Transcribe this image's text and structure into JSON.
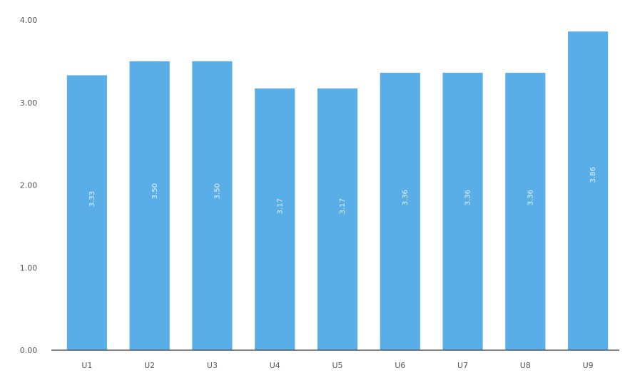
{
  "chart_data": {
    "type": "bar",
    "categories": [
      "U1",
      "U2",
      "U3",
      "U4",
      "U5",
      "U6",
      "U7",
      "U8",
      "U9"
    ],
    "values": [
      3.33,
      3.5,
      3.5,
      3.17,
      3.17,
      3.36,
      3.36,
      3.36,
      3.86
    ],
    "bar_labels": [
      "3.33",
      "3.50",
      "3.50",
      "3.17",
      "3.17",
      "3.36",
      "3.36",
      "3.36",
      "3.86"
    ],
    "ylim": [
      0,
      4
    ],
    "y_ticks": [
      0,
      1,
      2,
      3,
      4
    ],
    "y_tick_labels": [
      "0.00",
      "1.00",
      "2.00",
      "3.00",
      "4.00"
    ],
    "title": "",
    "xlabel": "",
    "ylabel": "",
    "grid": false,
    "colors": {
      "bar": "#5aaee8",
      "axis": "#555555"
    }
  }
}
